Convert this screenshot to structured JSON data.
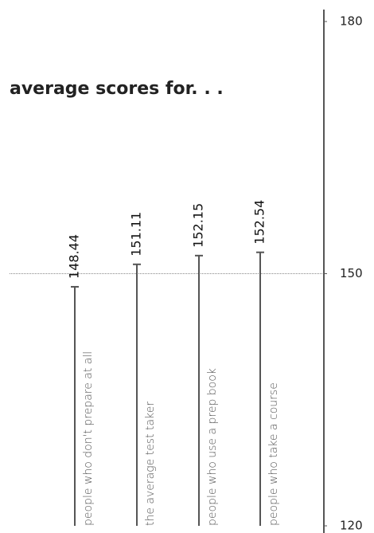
{
  "chart_data": {
    "type": "bar",
    "title": "average scores for. . .",
    "categories": [
      "people who don't prepare at all",
      "the average test taker",
      "people who use a prep book",
      "people who take a course"
    ],
    "values": [
      148.44,
      151.11,
      152.15,
      152.54
    ],
    "color": "#555555",
    "ylim": [
      120,
      180
    ],
    "yticks": [
      120,
      150,
      180
    ],
    "reference_line": 150
  }
}
